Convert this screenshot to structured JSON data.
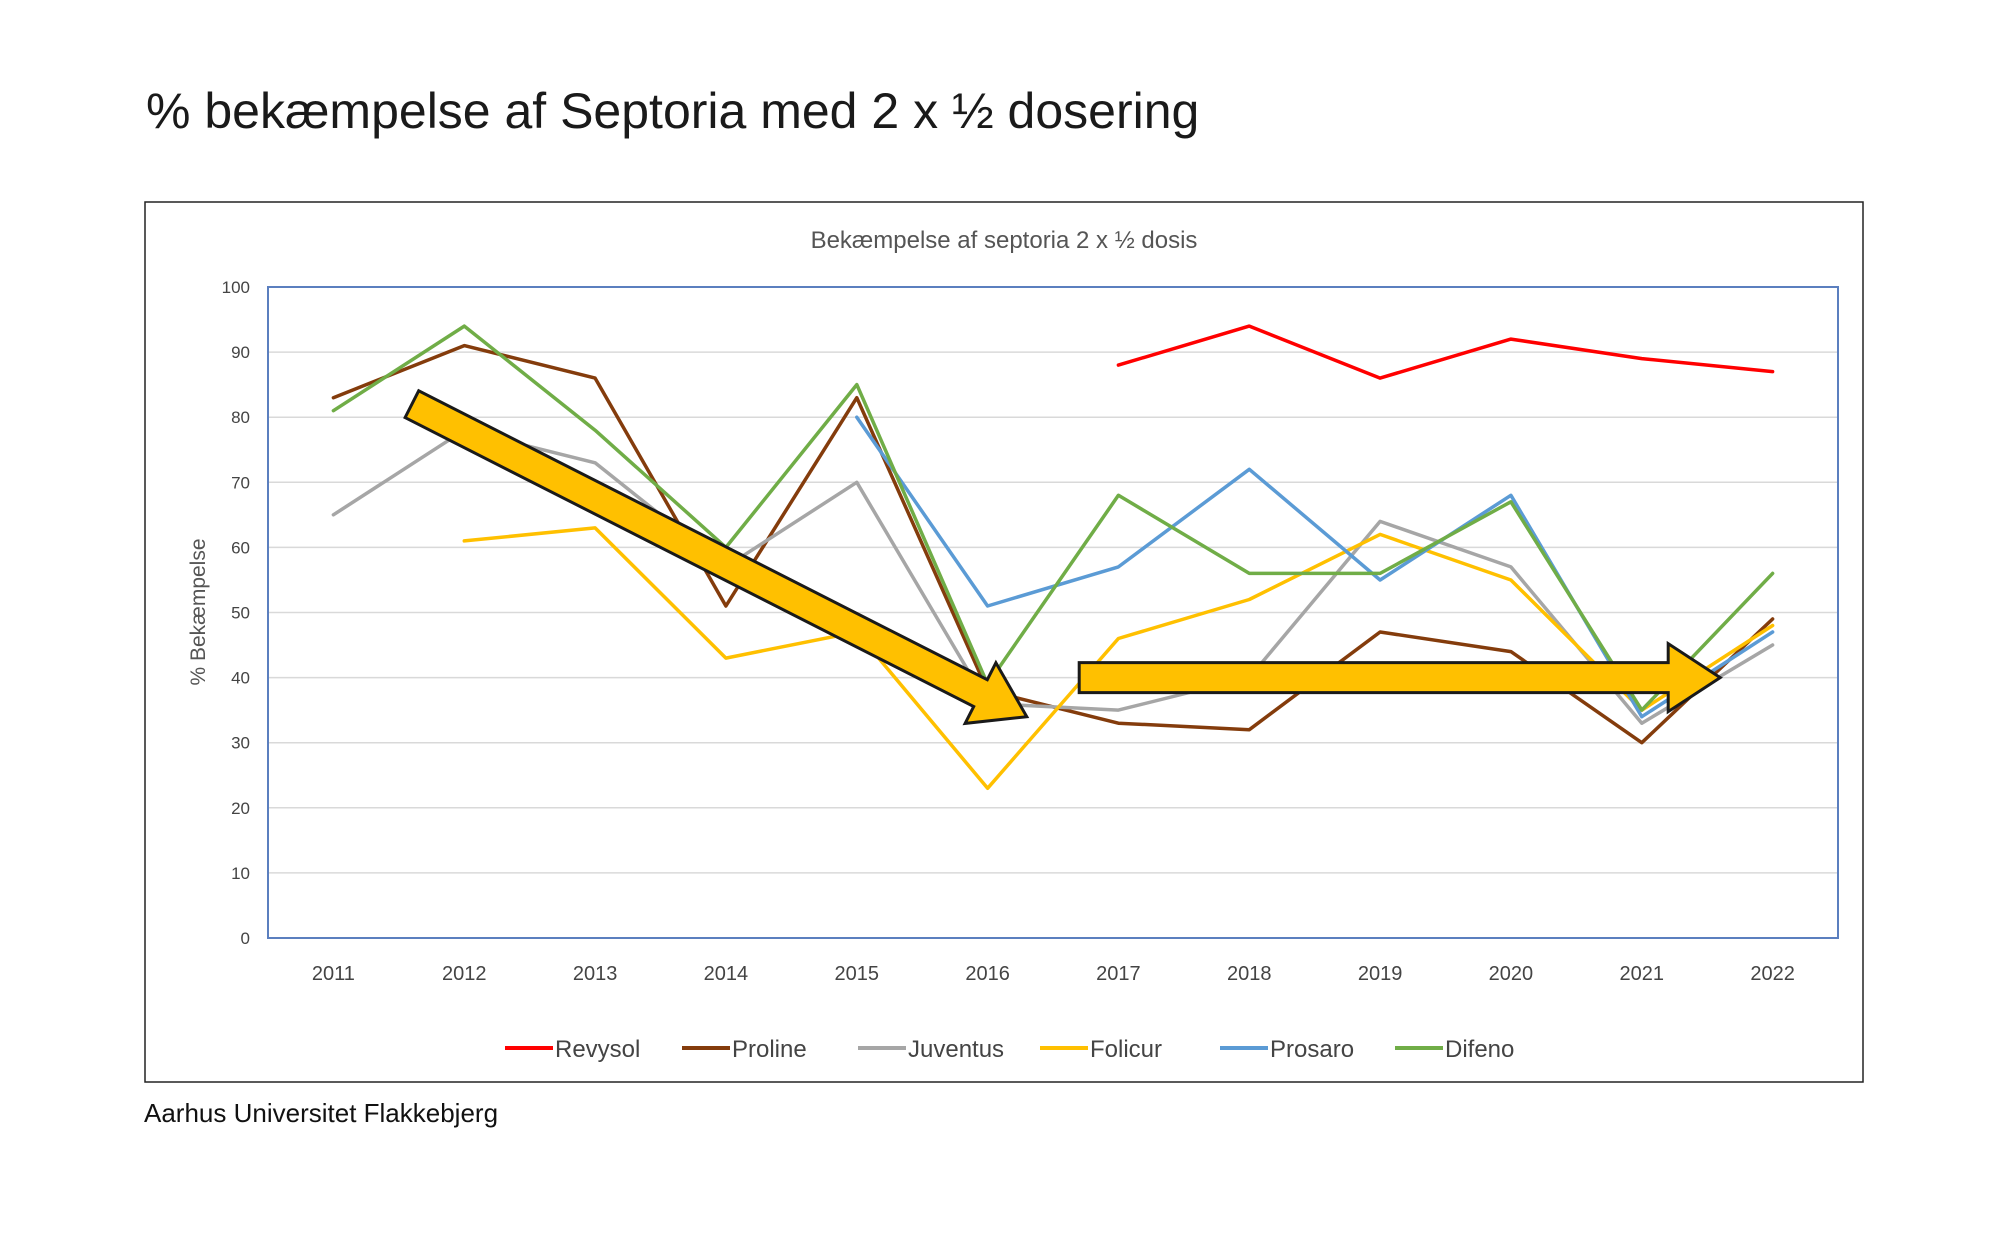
{
  "slide": {
    "title": "% bekæmpelse af Septoria med 2 x ½ dosering",
    "footer": "Aarhus Universitet Flakkebjerg"
  },
  "chart_data": {
    "type": "line",
    "title": "Bekæmpelse af septoria 2 x ½ dosis",
    "xlabel": "",
    "ylabel": "% Bekæmpelse",
    "ylim": [
      0,
      100
    ],
    "yticks": [
      0,
      10,
      20,
      30,
      40,
      50,
      60,
      70,
      80,
      90,
      100
    ],
    "grid": true,
    "legend_position": "bottom",
    "categories": [
      "2011",
      "2012",
      "2013",
      "2014",
      "2015",
      "2016",
      "2017",
      "2018",
      "2019",
      "2020",
      "2021",
      "2022"
    ],
    "series": [
      {
        "name": "Revysol",
        "color": "#ff0000",
        "values": [
          null,
          null,
          null,
          null,
          null,
          null,
          88,
          94,
          86,
          92,
          89,
          87
        ]
      },
      {
        "name": "Proline",
        "color": "#843c0c",
        "values": [
          83,
          91,
          86,
          51,
          83,
          38,
          33,
          32,
          47,
          44,
          30,
          49
        ]
      },
      {
        "name": "Juventus",
        "color": "#a6a6a6",
        "values": [
          65,
          78,
          73,
          57,
          70,
          36,
          35,
          40,
          64,
          57,
          33,
          45
        ]
      },
      {
        "name": "Folicur",
        "color": "#ffc000",
        "values": [
          null,
          61,
          63,
          43,
          47,
          23,
          46,
          52,
          62,
          55,
          35,
          48
        ]
      },
      {
        "name": "Prosaro",
        "color": "#5b9bd5",
        "values": [
          null,
          null,
          null,
          null,
          80,
          51,
          57,
          72,
          55,
          68,
          34,
          47
        ]
      },
      {
        "name": "Difeno",
        "color": "#70ad47",
        "values": [
          81,
          94,
          78,
          60,
          85,
          39,
          68,
          56,
          56,
          67,
          35,
          56
        ]
      }
    ],
    "annotations": [
      {
        "type": "arrow",
        "direction": "down-right",
        "from": {
          "x": "2011.6",
          "y": 82
        },
        "to": {
          "x": "2016.3",
          "y": 34
        },
        "color": "#ffc000"
      },
      {
        "type": "arrow",
        "direction": "right",
        "from": {
          "x": "2016.7",
          "y": 40
        },
        "to": {
          "x": "2021.6",
          "y": 40
        },
        "color": "#ffc000"
      }
    ]
  }
}
